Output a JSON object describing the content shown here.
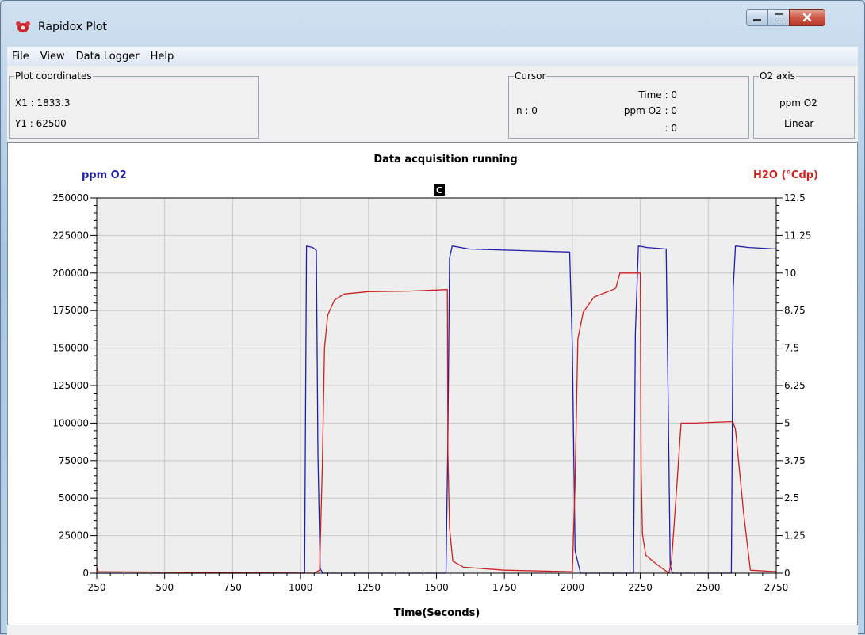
{
  "window": {
    "title": "Rapidox Plot",
    "controls": {
      "minimize": "minimize",
      "maximize": "maximize",
      "close": "close"
    }
  },
  "menu": {
    "file": "File",
    "view": "View",
    "data_logger": "Data Logger",
    "help": "Help"
  },
  "plot_coordinates": {
    "legend": "Plot coordinates",
    "x1": "X1 : 1833.3",
    "y1": "Y1 : 62500"
  },
  "cursor": {
    "legend": "Cursor",
    "n": "n : 0",
    "time": "Time : 0",
    "ppm": "ppm O2 : 0",
    "third": ": 0"
  },
  "o2_axis": {
    "legend": "O2 axis",
    "unit": "ppm O2",
    "scale": "Linear"
  },
  "colors": {
    "o2": "#1f1fa8",
    "h2o": "#cc2020",
    "grid": "#c8c8c8",
    "plot_bg": "#eeeeee"
  },
  "chart_data": {
    "type": "line",
    "title": "Data acquisition running",
    "marker": "C",
    "xlabel": "Time(Seconds)",
    "ylabel_left": "ppm O2",
    "ylabel_right": "H2O (°Cdp)",
    "xlim": [
      250,
      2750
    ],
    "ylim_left": [
      0,
      250000
    ],
    "ylim_right": [
      0,
      12.5
    ],
    "x_ticks": [
      250,
      500,
      750,
      1000,
      1250,
      1500,
      1750,
      2000,
      2250,
      2500,
      2750
    ],
    "y_left_ticks": [
      0,
      25000,
      50000,
      75000,
      100000,
      125000,
      150000,
      175000,
      200000,
      225000,
      250000
    ],
    "y_right_ticks": [
      "0",
      "1.25",
      "2.5",
      "3.75",
      "5",
      "6.25",
      "7.5",
      "8.75",
      "10",
      "11.25",
      "12.5"
    ],
    "grid": true,
    "series": [
      {
        "name": "ppm O2",
        "axis": "left",
        "color": "#1f1fa8",
        "points": [
          [
            250,
            0
          ],
          [
            1015,
            0
          ],
          [
            1022,
            218000
          ],
          [
            1045,
            217000
          ],
          [
            1058,
            215000
          ],
          [
            1064,
            80000
          ],
          [
            1072,
            3000
          ],
          [
            1082,
            0
          ],
          [
            1535,
            0
          ],
          [
            1542,
            90000
          ],
          [
            1548,
            210000
          ],
          [
            1558,
            218000
          ],
          [
            1620,
            216000
          ],
          [
            1800,
            215000
          ],
          [
            1990,
            214000
          ],
          [
            2000,
            150000
          ],
          [
            2010,
            15000
          ],
          [
            2030,
            0
          ],
          [
            2225,
            0
          ],
          [
            2232,
            160000
          ],
          [
            2243,
            218000
          ],
          [
            2275,
            217000
          ],
          [
            2345,
            216000
          ],
          [
            2352,
            120000
          ],
          [
            2360,
            5000
          ],
          [
            2368,
            0
          ],
          [
            2585,
            0
          ],
          [
            2592,
            190000
          ],
          [
            2600,
            218000
          ],
          [
            2650,
            217000
          ],
          [
            2750,
            216000
          ]
        ]
      },
      {
        "name": "H2O (°Cdp)",
        "axis": "right",
        "color": "#cc2020",
        "points": [
          [
            250,
            0.2
          ],
          [
            255,
            0.05
          ],
          [
            1050,
            0
          ],
          [
            1070,
            0.1
          ],
          [
            1080,
            3.5
          ],
          [
            1088,
            7.5
          ],
          [
            1100,
            8.6
          ],
          [
            1125,
            9.1
          ],
          [
            1160,
            9.3
          ],
          [
            1250,
            9.38
          ],
          [
            1400,
            9.4
          ],
          [
            1540,
            9.45
          ],
          [
            1542,
            4.0
          ],
          [
            1548,
            1.5
          ],
          [
            1560,
            0.4
          ],
          [
            1600,
            0.2
          ],
          [
            1750,
            0.1
          ],
          [
            2000,
            0.05
          ],
          [
            2010,
            3.0
          ],
          [
            2020,
            7.8
          ],
          [
            2040,
            8.7
          ],
          [
            2080,
            9.2
          ],
          [
            2150,
            9.45
          ],
          [
            2160,
            9.5
          ],
          [
            2175,
            10.0
          ],
          [
            2250,
            10.0
          ],
          [
            2253,
            3.5
          ],
          [
            2258,
            1.3
          ],
          [
            2270,
            0.6
          ],
          [
            2310,
            0.3
          ],
          [
            2340,
            0.1
          ],
          [
            2355,
            0.0
          ],
          [
            2365,
            0.4
          ],
          [
            2385,
            3.0
          ],
          [
            2400,
            5.0
          ],
          [
            2450,
            5.0
          ],
          [
            2590,
            5.05
          ],
          [
            2600,
            4.8
          ],
          [
            2630,
            2.0
          ],
          [
            2655,
            0.1
          ],
          [
            2750,
            0.05
          ]
        ]
      }
    ]
  }
}
